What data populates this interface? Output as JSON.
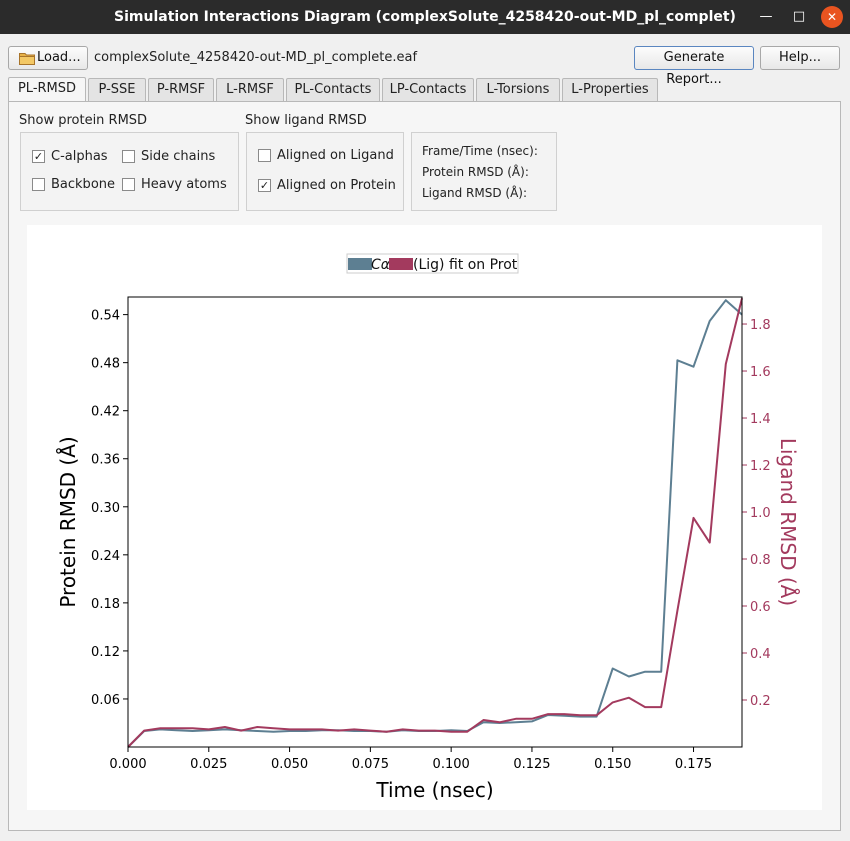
{
  "window": {
    "title": "Simulation Interactions Diagram (complexSolute_4258420-out-MD_pl_complet)",
    "min_glyph": "—",
    "max_glyph": "□",
    "close_glyph": "✕"
  },
  "toolbar": {
    "load_label": "Load...",
    "filename": "complexSolute_4258420-out-MD_pl_complete.eaf",
    "report_label": "Generate Report...",
    "help_label": "Help..."
  },
  "tabs": [
    "PL-RMSD",
    "P-SSE",
    "P-RMSF",
    "L-RMSF",
    "PL-Contacts",
    "LP-Contacts",
    "L-Torsions",
    "L-Properties"
  ],
  "protein_group": {
    "label": "Show protein RMSD",
    "c_alphas": "C-alphas",
    "side_chains": "Side chains",
    "backbone": "Backbone",
    "heavy_atoms": "Heavy atoms"
  },
  "ligand_group": {
    "label": "Show ligand RMSD",
    "aligned_ligand": "Aligned on Ligand",
    "aligned_protein": "Aligned on Protein"
  },
  "info": {
    "frame_time": "Frame/Time (nsec):",
    "protein_rmsd": "Protein RMSD (Å):",
    "ligand_rmsd": "Ligand RMSD (Å):"
  },
  "checked_mark": "✓",
  "colors": {
    "protein_series": "#5d7f92",
    "ligand_series": "#a33a5e"
  },
  "chart_data": {
    "type": "line",
    "xlabel": "Time (nsec)",
    "ylabel": "Protein RMSD (Å)",
    "y2label": "Ligand RMSD (Å)",
    "xlim": [
      0,
      0.19
    ],
    "ylim": [
      0,
      0.562
    ],
    "y2lim": [
      0,
      1.915
    ],
    "xticks": [
      "0.000",
      "0.025",
      "0.050",
      "0.075",
      "0.100",
      "0.125",
      "0.150",
      "0.175"
    ],
    "yticks": [
      "0.06",
      "0.12",
      "0.18",
      "0.24",
      "0.30",
      "0.36",
      "0.42",
      "0.48",
      "0.54"
    ],
    "y2ticks": [
      "0.2",
      "0.4",
      "0.6",
      "0.8",
      "1.0",
      "1.2",
      "1.4",
      "1.6",
      "1.8"
    ],
    "legend": [
      "Cα",
      "(Lig) fit on Prot"
    ],
    "legend_position": "top-center",
    "x": [
      0,
      0.005,
      0.01,
      0.015,
      0.02,
      0.025,
      0.03,
      0.035,
      0.04,
      0.045,
      0.05,
      0.055,
      0.06,
      0.065,
      0.07,
      0.075,
      0.08,
      0.085,
      0.09,
      0.095,
      0.1,
      0.105,
      0.11,
      0.115,
      0.12,
      0.125,
      0.13,
      0.135,
      0.14,
      0.145,
      0.15,
      0.155,
      0.16,
      0.165,
      0.17,
      0.175,
      0.18,
      0.185,
      0.19
    ],
    "series": [
      {
        "name": "Cα",
        "axis": "left",
        "values": [
          0,
          0.02,
          0.022,
          0.021,
          0.02,
          0.021,
          0.022,
          0.021,
          0.02,
          0.019,
          0.02,
          0.02,
          0.021,
          0.021,
          0.02,
          0.02,
          0.019,
          0.021,
          0.02,
          0.02,
          0.021,
          0.02,
          0.031,
          0.03,
          0.031,
          0.032,
          0.04,
          0.039,
          0.038,
          0.038,
          0.098,
          0.088,
          0.094,
          0.094,
          0.483,
          0.475,
          0.532,
          0.558,
          0.54
        ]
      },
      {
        "name": "(Lig) fit on Prot",
        "axis": "right",
        "values": [
          0,
          0.07,
          0.08,
          0.08,
          0.08,
          0.075,
          0.085,
          0.07,
          0.085,
          0.08,
          0.075,
          0.075,
          0.075,
          0.07,
          0.075,
          0.07,
          0.065,
          0.075,
          0.07,
          0.07,
          0.065,
          0.065,
          0.115,
          0.105,
          0.12,
          0.12,
          0.14,
          0.14,
          0.135,
          0.135,
          0.19,
          0.21,
          0.17,
          0.17,
          0.58,
          0.975,
          0.87,
          1.63,
          1.91
        ]
      }
    ]
  }
}
